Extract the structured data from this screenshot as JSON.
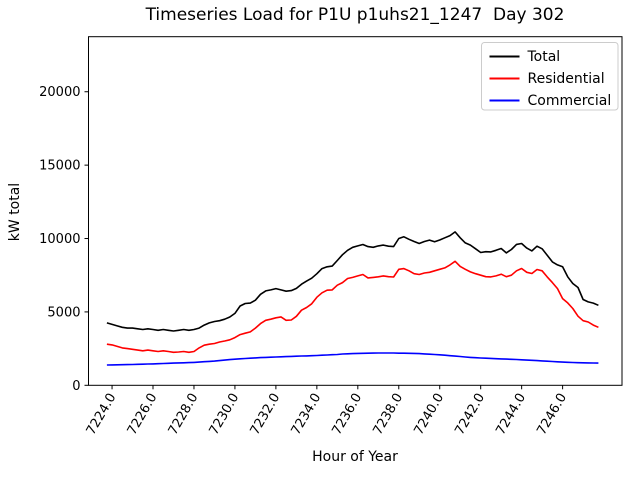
{
  "title": "Timeseries Load for P1U p1uhs21_1247  Day 302",
  "axes": {
    "xlabel": "Hour of Year",
    "ylabel": "kW total",
    "x_tick_labels": [
      "7224.0",
      "7226.0",
      "7228.0",
      "7230.0",
      "7232.0",
      "7234.0",
      "7236.0",
      "7238.0",
      "7240.0",
      "7242.0",
      "7244.0",
      "7246.0"
    ],
    "y_ticks": [
      0,
      5000,
      10000,
      15000,
      20000
    ]
  },
  "legend": {
    "entries": [
      {
        "label": "Total",
        "color": "#000000"
      },
      {
        "label": "Residential",
        "color": "#ff0000"
      },
      {
        "label": "Commercial",
        "color": "#0000ff"
      }
    ]
  },
  "chart_data": {
    "type": "line",
    "title": "Timeseries Load for P1U p1uhs21_1247  Day 302",
    "xlabel": "Hour of Year",
    "ylabel": "kW total",
    "xlim": [
      7222.85,
      7248.9
    ],
    "ylim": [
      0,
      23750
    ],
    "grid": false,
    "legend_position": "upper right",
    "x_start": 7223.75,
    "x_step": 0.25,
    "series": [
      {
        "name": "Total",
        "color": "#000000",
        "values": [
          4250,
          4150,
          4050,
          3950,
          3900,
          3900,
          3850,
          3800,
          3850,
          3800,
          3750,
          3800,
          3750,
          3700,
          3750,
          3800,
          3750,
          3800,
          3900,
          4100,
          4250,
          4350,
          4400,
          4500,
          4650,
          4900,
          5400,
          5570,
          5600,
          5800,
          6200,
          6430,
          6500,
          6590,
          6500,
          6410,
          6450,
          6600,
          6890,
          7100,
          7300,
          7600,
          7950,
          8070,
          8120,
          8500,
          8900,
          9200,
          9400,
          9500,
          9590,
          9450,
          9400,
          9500,
          9550,
          9480,
          9450,
          10000,
          10120,
          9950,
          9800,
          9660,
          9800,
          9890,
          9780,
          9900,
          10050,
          10200,
          10450,
          10050,
          9700,
          9550,
          9300,
          9050,
          9100,
          9090,
          9200,
          9320,
          9020,
          9250,
          9600,
          9660,
          9350,
          9160,
          9480,
          9300,
          8865,
          8410,
          8200,
          8070,
          7390,
          6935,
          6660,
          5845,
          5680,
          5600,
          5450
        ]
      },
      {
        "name": "Residential",
        "color": "#ff0000",
        "values": [
          2800,
          2750,
          2650,
          2550,
          2500,
          2450,
          2400,
          2350,
          2400,
          2350,
          2300,
          2350,
          2300,
          2250,
          2270,
          2300,
          2250,
          2300,
          2550,
          2730,
          2800,
          2850,
          2950,
          3020,
          3100,
          3250,
          3455,
          3550,
          3635,
          3900,
          4205,
          4430,
          4500,
          4600,
          4660,
          4430,
          4450,
          4700,
          5115,
          5300,
          5550,
          6000,
          6300,
          6480,
          6500,
          6820,
          7000,
          7275,
          7350,
          7450,
          7550,
          7320,
          7350,
          7390,
          7450,
          7400,
          7380,
          7900,
          7950,
          7800,
          7600,
          7550,
          7650,
          7700,
          7800,
          7900,
          8000,
          8200,
          8450,
          8100,
          7900,
          7725,
          7600,
          7500,
          7400,
          7385,
          7450,
          7570,
          7400,
          7500,
          7800,
          7955,
          7700,
          7615,
          7890,
          7800,
          7385,
          7000,
          6590,
          5910,
          5615,
          5230,
          4705,
          4400,
          4315,
          4100,
          3950
        ]
      },
      {
        "name": "Commercial",
        "color": "#0000ff",
        "values": [
          1380,
          1390,
          1398,
          1405,
          1413,
          1420,
          1430,
          1440,
          1450,
          1460,
          1473,
          1485,
          1498,
          1510,
          1523,
          1535,
          1548,
          1560,
          1583,
          1605,
          1628,
          1650,
          1683,
          1715,
          1748,
          1780,
          1803,
          1825,
          1848,
          1870,
          1885,
          1900,
          1915,
          1930,
          1943,
          1955,
          1968,
          1980,
          1993,
          2005,
          2018,
          2030,
          2048,
          2065,
          2083,
          2100,
          2130,
          2145,
          2160,
          2170,
          2180,
          2190,
          2195,
          2200,
          2200,
          2200,
          2200,
          2190,
          2185,
          2180,
          2170,
          2160,
          2140,
          2120,
          2100,
          2080,
          2050,
          2020,
          1990,
          1960,
          1930,
          1900,
          1880,
          1860,
          1845,
          1830,
          1815,
          1800,
          1785,
          1770,
          1755,
          1740,
          1720,
          1700,
          1680,
          1660,
          1640,
          1620,
          1600,
          1580,
          1568,
          1555,
          1543,
          1530,
          1523,
          1517,
          1510
        ]
      }
    ]
  }
}
